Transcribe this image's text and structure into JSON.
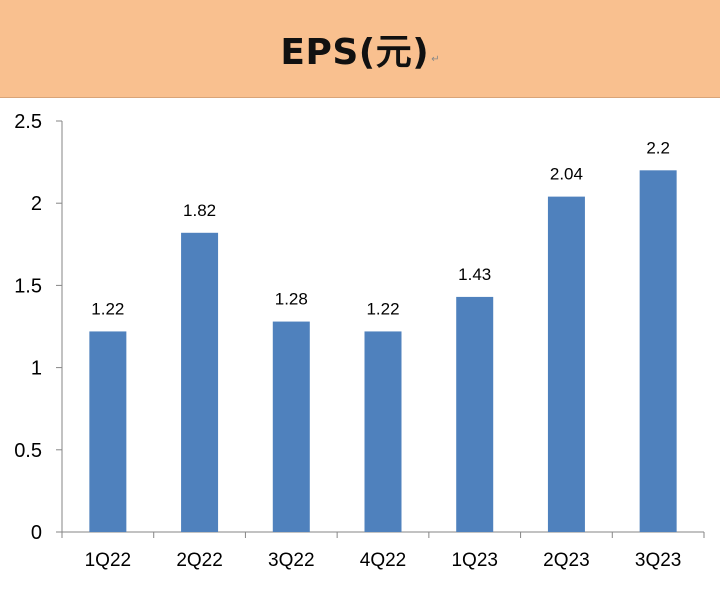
{
  "header": {
    "title": "EPS(元)",
    "mark": "↵"
  },
  "colors": {
    "header_bg": "#f9c08f",
    "bar": "#4f81bd",
    "axis": "#868686",
    "text": "#000000"
  },
  "chart_data": {
    "type": "bar",
    "title": "EPS(元)",
    "xlabel": "",
    "ylabel": "",
    "categories": [
      "1Q22",
      "2Q22",
      "3Q22",
      "4Q22",
      "1Q23",
      "2Q23",
      "3Q23"
    ],
    "values": [
      1.22,
      1.82,
      1.28,
      1.22,
      1.43,
      2.04,
      2.2
    ],
    "value_labels": [
      "1.22",
      "1.82",
      "1.28",
      "1.22",
      "1.43",
      "2.04",
      "2.2"
    ],
    "ylim": [
      0,
      2.5
    ],
    "yticks": [
      0,
      0.5,
      1,
      1.5,
      2,
      2.5
    ],
    "ytick_labels": [
      "0",
      "0.5",
      "1",
      "1.5",
      "2",
      "2.5"
    ],
    "grid": false,
    "legend": "none"
  }
}
